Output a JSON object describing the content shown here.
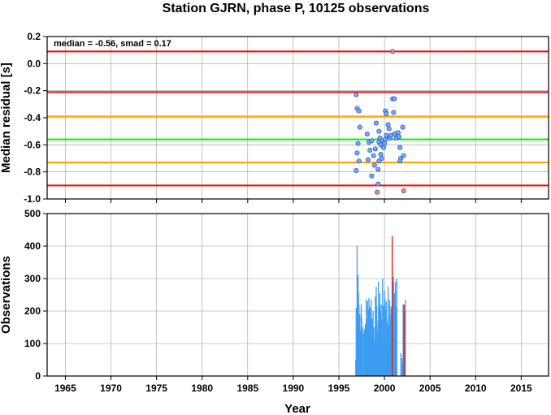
{
  "chart_data": [
    {
      "type": "scatter",
      "title": "Station GJRN, phase P, 10125 observations",
      "ylabel": "Median residual [s]",
      "annotation": "median = -0.56, smad = 0.17",
      "xlim": [
        1963,
        2018
      ],
      "ylim": [
        -1.0,
        0.2
      ],
      "yticks": [
        "0.2",
        "0.0",
        "-0.2",
        "-0.4",
        "-0.6",
        "-0.8",
        "-1.0"
      ],
      "grid": true,
      "reference_lines": [
        {
          "y": 0.09,
          "color": "#ff0000"
        },
        {
          "y": -0.21,
          "color": "#ff0000"
        },
        {
          "y": -0.39,
          "color": "#ffa500"
        },
        {
          "y": -0.56,
          "color": "#00ee00"
        },
        {
          "y": -0.73,
          "color": "#ffa500"
        },
        {
          "y": -0.9,
          "color": "#ff0000"
        }
      ],
      "series": [
        {
          "color": "#6fa8ff",
          "points": [
            [
              1996.9,
              -0.23
            ],
            [
              1997.0,
              -0.33
            ],
            [
              1997.2,
              -0.35
            ],
            [
              1997.3,
              -0.47
            ],
            [
              1997.1,
              -0.59
            ],
            [
              1997.0,
              -0.66
            ],
            [
              1997.2,
              -0.72
            ],
            [
              1996.9,
              -0.79
            ],
            [
              1998.1,
              -0.52
            ],
            [
              1998.3,
              -0.58
            ],
            [
              1998.6,
              -0.57
            ],
            [
              1998.4,
              -0.64
            ],
            [
              1998.8,
              -0.68
            ],
            [
              1999.0,
              -0.63
            ],
            [
              1998.2,
              -0.71
            ],
            [
              1998.9,
              -0.75
            ],
            [
              1999.3,
              -0.78
            ],
            [
              1998.6,
              -0.83
            ],
            [
              1999.3,
              -0.89
            ],
            [
              1999.1,
              -0.44
            ],
            [
              1999.4,
              -0.5
            ],
            [
              1999.5,
              -0.55
            ],
            [
              1999.4,
              -0.58
            ],
            [
              1999.6,
              -0.6
            ],
            [
              1999.8,
              -0.57
            ],
            [
              1999.6,
              -0.67
            ],
            [
              1999.7,
              -0.7
            ],
            [
              1999.4,
              -0.72
            ],
            [
              1999.9,
              -0.62
            ],
            [
              2000.1,
              -0.35
            ],
            [
              2000.2,
              -0.37
            ],
            [
              2000.2,
              -0.53
            ],
            [
              2000.1,
              -0.56
            ],
            [
              2000.0,
              -0.59
            ],
            [
              2000.4,
              -0.45
            ],
            [
              2000.5,
              -0.48
            ],
            [
              2000.6,
              -0.55
            ],
            [
              2000.9,
              -0.26
            ],
            [
              2001.1,
              -0.26
            ],
            [
              2001.0,
              -0.36
            ],
            [
              2001.1,
              -0.52
            ],
            [
              2000.7,
              -0.53
            ],
            [
              2001.3,
              -0.55
            ],
            [
              2001.5,
              -0.51
            ],
            [
              2001.6,
              -0.54
            ],
            [
              2001.7,
              -0.62
            ],
            [
              2001.8,
              -0.7
            ],
            [
              2001.7,
              -0.72
            ],
            [
              2002.0,
              -0.47
            ],
            [
              2002.1,
              -0.68
            ]
          ]
        },
        {
          "color": "#ff7f6a",
          "points": [
            [
              2000.9,
              0.09
            ],
            [
              1999.2,
              -0.95
            ],
            [
              2002.1,
              -0.94
            ]
          ]
        }
      ]
    },
    {
      "type": "bar",
      "xlabel": "Year",
      "ylabel": "Observations",
      "xlim": [
        1963,
        2018
      ],
      "ylim": [
        0,
        500
      ],
      "xticks": [
        "1965",
        "1970",
        "1975",
        "1980",
        "1985",
        "1990",
        "1995",
        "2000",
        "2005",
        "2010",
        "2015"
      ],
      "yticks": [
        "0",
        "100",
        "200",
        "300",
        "400",
        "500"
      ],
      "grid": true,
      "series": [
        {
          "color": "#3c9cf0",
          "x": [
            1996.85,
            1996.9,
            1996.95,
            1997.0,
            1997.05,
            1997.1,
            1997.15,
            1997.2,
            1997.25,
            1997.3,
            1997.35,
            1997.4,
            1997.45,
            1997.5,
            1997.55,
            1997.6,
            1997.7,
            1997.8,
            1997.9,
            1998.0,
            1998.05,
            1998.1,
            1998.15,
            1998.2,
            1998.25,
            1998.3,
            1998.35,
            1998.4,
            1998.45,
            1998.5,
            1998.55,
            1998.6,
            1998.65,
            1998.7,
            1998.75,
            1998.8,
            1998.85,
            1998.9,
            1998.95,
            1999.0,
            1999.05,
            1999.1,
            1999.15,
            1999.2,
            1999.25,
            1999.3,
            1999.35,
            1999.4,
            1999.45,
            1999.5,
            1999.55,
            1999.6,
            1999.65,
            1999.7,
            1999.75,
            1999.8,
            1999.85,
            1999.9,
            1999.95,
            2000.0,
            2000.05,
            2000.1,
            2000.15,
            2000.2,
            2000.25,
            2000.3,
            2000.35,
            2000.4,
            2000.45,
            2000.5,
            2000.55,
            2000.6,
            2000.65,
            2000.7,
            2000.75,
            2000.8,
            2000.9,
            2001.0,
            2001.05,
            2001.1,
            2001.15,
            2001.2,
            2001.25,
            2001.3,
            2001.35,
            2001.8,
            2001.9,
            2002.0,
            2002.05,
            2002.1,
            2002.2,
            2002.3
          ],
          "values": [
            50,
            210,
            130,
            400,
            175,
            310,
            255,
            220,
            165,
            190,
            140,
            100,
            220,
            180,
            120,
            150,
            130,
            145,
            160,
            235,
            175,
            140,
            230,
            205,
            190,
            240,
            215,
            165,
            210,
            180,
            235,
            120,
            175,
            125,
            200,
            150,
            90,
            110,
            150,
            245,
            100,
            275,
            215,
            140,
            100,
            170,
            290,
            215,
            120,
            255,
            160,
            200,
            220,
            175,
            90,
            300,
            120,
            215,
            185,
            265,
            240,
            110,
            205,
            230,
            175,
            160,
            125,
            275,
            90,
            155,
            235,
            185,
            120,
            215,
            165,
            205,
            290,
            305,
            180,
            255,
            160,
            290,
            215,
            185,
            300,
            70,
            55,
            40,
            220,
            120,
            200,
            235
          ]
        },
        {
          "color": "#e8140a",
          "x": [
            2000.85,
            2002.15
          ],
          "values": [
            430,
            220
          ]
        }
      ]
    }
  ]
}
